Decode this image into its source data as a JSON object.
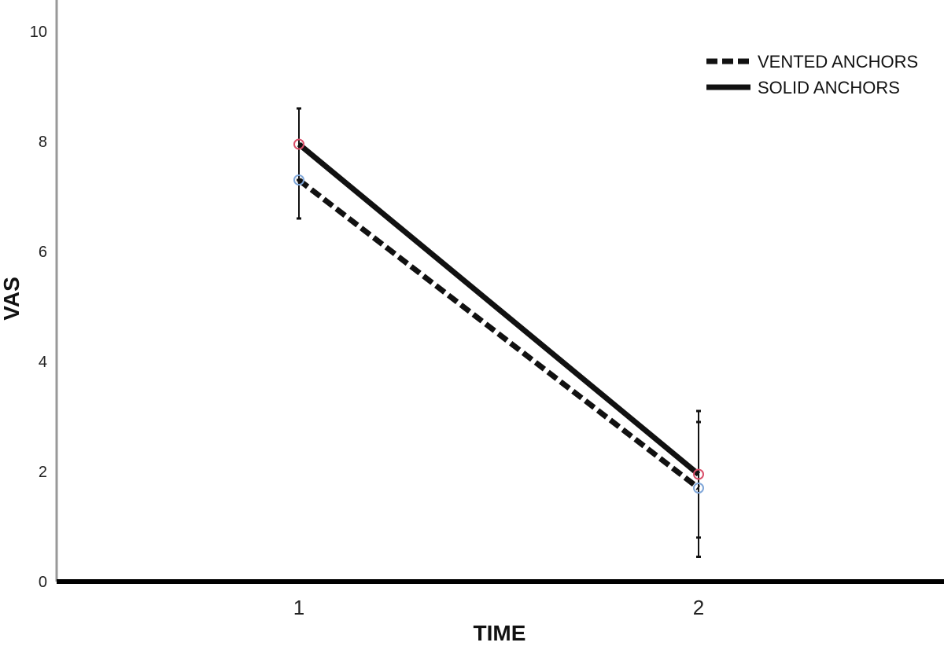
{
  "chart_data": {
    "type": "line",
    "xlabel": "TIME",
    "ylabel": "VAS",
    "categories": [
      "1",
      "2"
    ],
    "ylim": [
      0,
      10
    ],
    "yticks": [
      "0",
      "2",
      "4",
      "6",
      "8",
      "10"
    ],
    "grid": false,
    "legend_position": "top-right",
    "series": [
      {
        "name": "VENTED ANCHORS",
        "style": "dashed",
        "color": "#111111",
        "marker_color": "#7fa6d8",
        "values": [
          7.3,
          1.7
        ],
        "error_low": [
          6.6,
          0.8
        ],
        "error_high": [
          8.6,
          2.9
        ]
      },
      {
        "name": "SOLID ANCHORS",
        "style": "solid",
        "color": "#111111",
        "marker_color": "#d9506a",
        "values": [
          7.95,
          1.95
        ],
        "error_low": [
          7.3,
          0.45
        ],
        "error_high": [
          8.6,
          3.1
        ]
      }
    ]
  }
}
